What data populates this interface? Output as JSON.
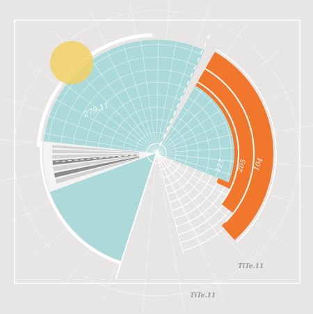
{
  "labels": {
    "big_wedge": "279.11",
    "ring_inner": "127",
    "ring_middle": "205",
    "ring_outer": "104",
    "caption_inner": "TiTe.11",
    "caption_outer": "TiTe.11"
  },
  "colors": {
    "background": "#e8e6e4",
    "teal": "#acd9da",
    "orange": "#f1772c",
    "yellow": "#f1d064",
    "dark_bar": "#8c8c8c",
    "light_bar": "#d2d2d2",
    "white": "#ffffff",
    "caption": "#9a9a9a"
  }
}
